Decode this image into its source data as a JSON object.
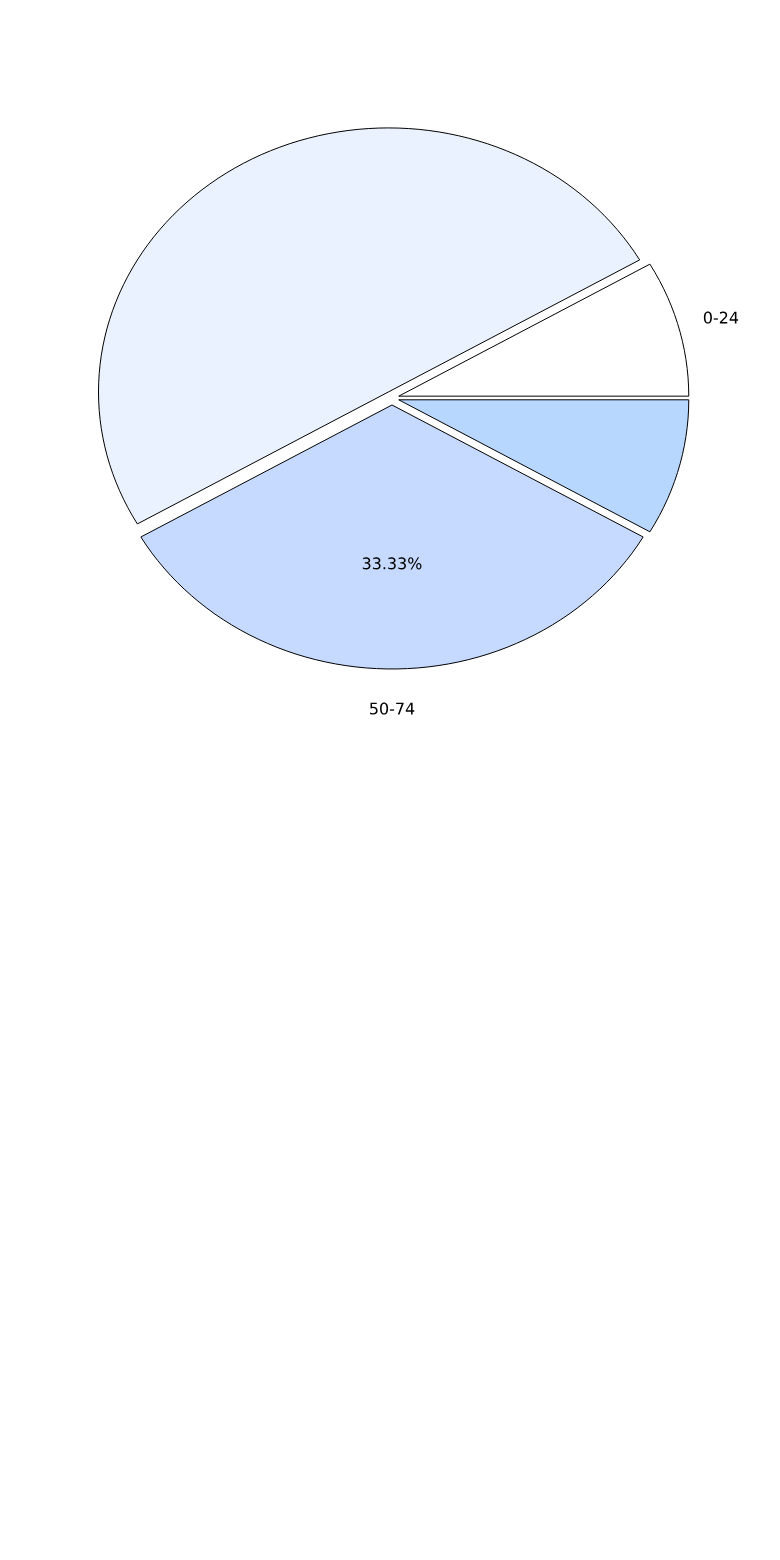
{
  "chart_data": {
    "type": "pie",
    "categories": [
      "0-24",
      null,
      "50-74",
      null
    ],
    "values": [
      8.335,
      50,
      33.33,
      8.335
    ],
    "colors": [
      "#ffffff",
      "#eaf1ff",
      "#c6d9ff",
      "#b8d7ff"
    ],
    "value_labels": [
      null,
      null,
      "33.33%",
      null
    ]
  }
}
